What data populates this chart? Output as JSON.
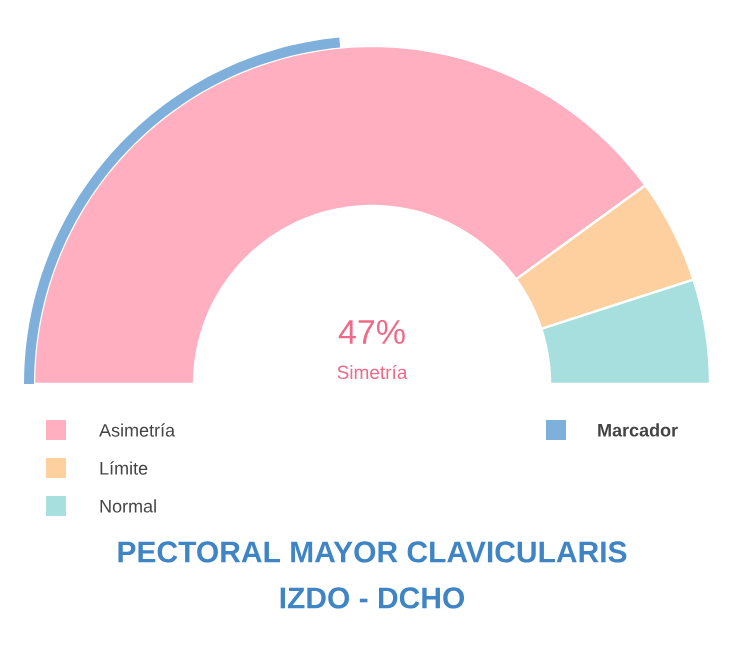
{
  "chart_data": [
    {
      "type": "donut",
      "title": "PECTORAL MAYOR CLAVICULARIS",
      "subtitle": "IZDO - DCHO",
      "categories": [
        "Asimetría",
        "Límite",
        "Normal"
      ],
      "values": [
        80,
        10,
        10
      ],
      "colors": [
        "#ffafc0",
        "#ffd09f",
        "#a6dfde"
      ],
      "annotations": [
        "Simetría"
      ],
      "legend": "bottom"
    },
    {
      "type": "other",
      "categories": [
        "Marcador"
      ],
      "values": [
        47
      ],
      "colors": [
        "#7fb0dc"
      ],
      "value_labels": [
        "47%"
      ]
    }
  ]
}
